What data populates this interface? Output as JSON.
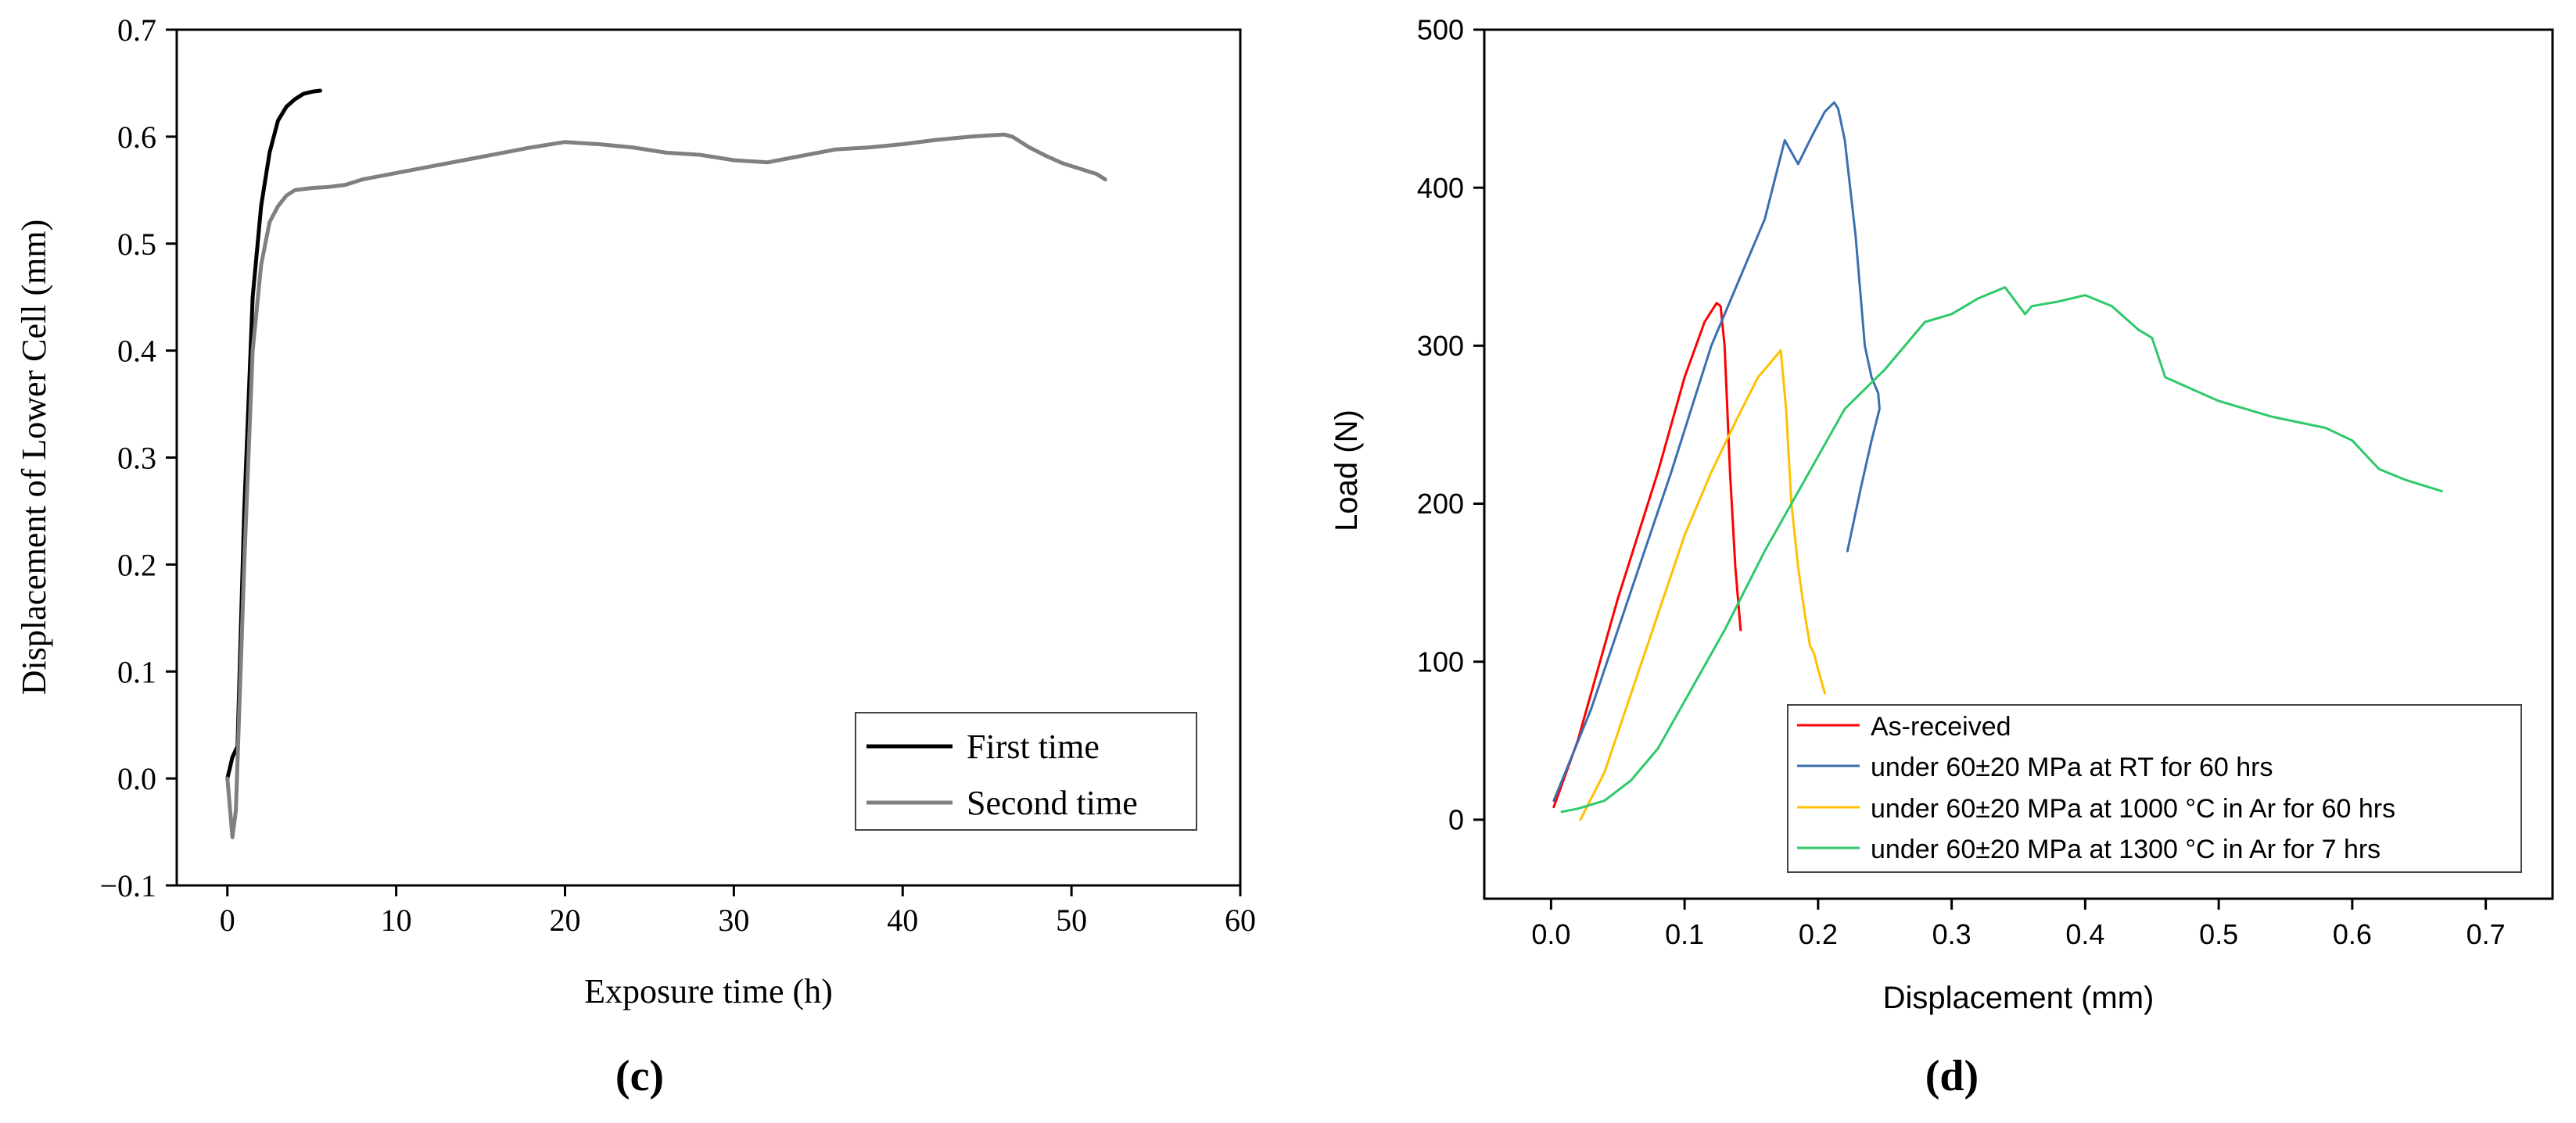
{
  "chart_data": [
    {
      "type": "line",
      "panel_label": "(c)",
      "xlabel": "Exposure time (h)",
      "ylabel": "Displacement of Lower Cell (mm)",
      "xlim": [
        -3,
        60
      ],
      "ylim": [
        -0.1,
        0.7
      ],
      "xticks": [
        0,
        10,
        20,
        30,
        40,
        50,
        60
      ],
      "yticks": [
        -0.1,
        0.0,
        0.1,
        0.2,
        0.3,
        0.4,
        0.5,
        0.6,
        0.7
      ],
      "ytick_labels": [
        "−0.1",
        "0.0",
        "0.1",
        "0.2",
        "0.3",
        "0.4",
        "0.5",
        "0.6",
        "0.7"
      ],
      "legend_position": "bottom-right",
      "series": [
        {
          "name": "First time",
          "color": "#000000",
          "x": [
            0,
            0.3,
            0.6,
            1.0,
            1.5,
            2.0,
            2.5,
            3.0,
            3.5,
            4.0,
            4.5,
            5.0,
            5.5
          ],
          "y": [
            0.0,
            0.02,
            0.03,
            0.25,
            0.45,
            0.535,
            0.585,
            0.615,
            0.628,
            0.635,
            0.64,
            0.642,
            0.643
          ]
        },
        {
          "name": "Second time",
          "color": "#808080",
          "x": [
            0,
            0.3,
            0.5,
            1.0,
            1.5,
            2.0,
            2.5,
            3.0,
            3.5,
            4.0,
            5.0,
            6.0,
            7.0,
            8.0,
            10.0,
            12.0,
            14.0,
            16.0,
            18.0,
            20.0,
            22.0,
            24.0,
            26.0,
            28.0,
            30.0,
            32.0,
            34.0,
            36.0,
            38.0,
            40.0,
            42.0,
            44.0,
            46.0,
            46.5,
            47.5,
            48.5,
            49.5,
            50.5,
            51.5,
            52.0
          ],
          "y": [
            0.0,
            -0.055,
            -0.03,
            0.2,
            0.4,
            0.48,
            0.52,
            0.535,
            0.545,
            0.55,
            0.552,
            0.553,
            0.555,
            0.56,
            0.566,
            0.572,
            0.578,
            0.584,
            0.59,
            0.595,
            0.593,
            0.59,
            0.585,
            0.583,
            0.578,
            0.576,
            0.582,
            0.588,
            0.59,
            0.593,
            0.597,
            0.6,
            0.602,
            0.6,
            0.59,
            0.582,
            0.575,
            0.57,
            0.565,
            0.56
          ]
        }
      ]
    },
    {
      "type": "line",
      "panel_label": "(d)",
      "xlabel": "Displacement (mm)",
      "ylabel": "Load (N)",
      "xlim": [
        -0.05,
        0.75
      ],
      "ylim": [
        -50,
        500
      ],
      "xticks": [
        0.0,
        0.1,
        0.2,
        0.3,
        0.4,
        0.5,
        0.6,
        0.7
      ],
      "xtick_labels": [
        "0.0",
        "0.1",
        "0.2",
        "0.3",
        "0.4",
        "0.5",
        "0.6",
        "0.7"
      ],
      "yticks": [
        0,
        100,
        200,
        300,
        400,
        500
      ],
      "legend_position": "bottom-right",
      "series": [
        {
          "name": "As-received",
          "color": "#ff0000",
          "x": [
            0.002,
            0.02,
            0.05,
            0.08,
            0.1,
            0.115,
            0.124,
            0.127,
            0.13,
            0.134,
            0.138,
            0.142
          ],
          "y": [
            8,
            50,
            140,
            220,
            280,
            315,
            327,
            325,
            300,
            220,
            160,
            120
          ]
        },
        {
          "name": "under 60±20 MPa at RT for 60 hrs",
          "color": "#3a6fb0",
          "x": [
            0.002,
            0.03,
            0.06,
            0.09,
            0.12,
            0.14,
            0.16,
            0.175,
            0.185,
            0.195,
            0.205,
            0.212,
            0.215,
            0.22,
            0.228,
            0.235,
            0.24,
            0.245,
            0.246,
            0.24,
            0.232,
            0.222
          ],
          "y": [
            12,
            70,
            145,
            220,
            300,
            340,
            380,
            430,
            415,
            432,
            448,
            454,
            450,
            430,
            370,
            300,
            280,
            270,
            260,
            240,
            210,
            170
          ]
        },
        {
          "name": "under 60±20 MPa at 1000 °C in Ar for 60 hrs",
          "color": "#ffc000",
          "x": [
            0.022,
            0.04,
            0.06,
            0.08,
            0.1,
            0.12,
            0.14,
            0.155,
            0.165,
            0.172,
            0.176,
            0.18,
            0.185,
            0.19,
            0.194,
            0.197,
            0.2,
            0.205
          ],
          "y": [
            0,
            30,
            80,
            130,
            180,
            220,
            255,
            280,
            290,
            297,
            260,
            200,
            160,
            130,
            110,
            105,
            95,
            80
          ]
        },
        {
          "name": "under 60±20 MPa at 1300 °C in Ar for 7 hrs",
          "color": "#2ec96a",
          "x": [
            0.008,
            0.02,
            0.04,
            0.06,
            0.08,
            0.1,
            0.13,
            0.16,
            0.19,
            0.22,
            0.25,
            0.28,
            0.3,
            0.32,
            0.34,
            0.355,
            0.36,
            0.38,
            0.4,
            0.42,
            0.44,
            0.45,
            0.46,
            0.5,
            0.54,
            0.58,
            0.6,
            0.62,
            0.64,
            0.667
          ],
          "y": [
            5,
            7,
            12,
            25,
            45,
            75,
            120,
            170,
            215,
            260,
            285,
            315,
            320,
            330,
            337,
            320,
            325,
            328,
            332,
            325,
            310,
            305,
            280,
            265,
            255,
            248,
            240,
            222,
            215,
            208
          ]
        }
      ]
    }
  ]
}
